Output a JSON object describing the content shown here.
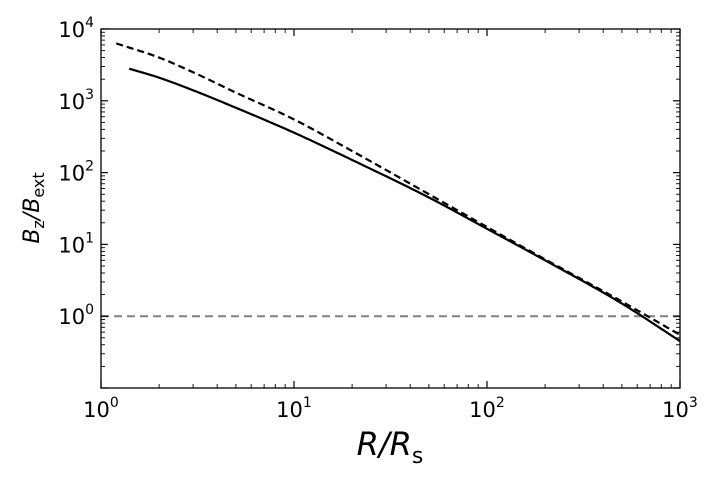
{
  "chart_data": {
    "type": "line",
    "xlabel": {
      "main": "R/R",
      "sub": "s"
    },
    "ylabel": {
      "p1": "B",
      "s1": "z",
      "p2": "/B",
      "s2": "ext"
    },
    "xscale": "log",
    "yscale": "log",
    "xlim": [
      1,
      1000
    ],
    "ylim": [
      0.1,
      10000
    ],
    "grid": false,
    "x_ticks": [
      {
        "value": 1,
        "base": "10",
        "exp": "0"
      },
      {
        "value": 10,
        "base": "10",
        "exp": "1"
      },
      {
        "value": 100,
        "base": "10",
        "exp": "2"
      },
      {
        "value": 1000,
        "base": "10",
        "exp": "3"
      }
    ],
    "y_ticks": [
      {
        "value": 1,
        "base": "10",
        "exp": "0"
      },
      {
        "value": 10,
        "base": "10",
        "exp": "1"
      },
      {
        "value": 100,
        "base": "10",
        "exp": "2"
      },
      {
        "value": 1000,
        "base": "10",
        "exp": "3"
      },
      {
        "value": 10000,
        "base": "10",
        "exp": "4"
      }
    ],
    "series": [
      {
        "style": "solid",
        "color": "#000000",
        "x": [
          1.4,
          2,
          3,
          5,
          10,
          20,
          50,
          100,
          200,
          500,
          1000
        ],
        "y": [
          2800,
          2100,
          1400,
          800,
          360,
          150,
          45,
          16.5,
          6,
          1.5,
          0.45
        ]
      },
      {
        "style": "dashed",
        "color": "#000000",
        "x": [
          1.2,
          2,
          3,
          5,
          10,
          20,
          50,
          100,
          200,
          500,
          1000
        ],
        "y": [
          6300,
          4000,
          2500,
          1300,
          550,
          200,
          50,
          17.5,
          6.2,
          1.6,
          0.55
        ]
      }
    ],
    "reference_line": {
      "y": 1,
      "style": "dashed",
      "color": "#808080"
    }
  }
}
